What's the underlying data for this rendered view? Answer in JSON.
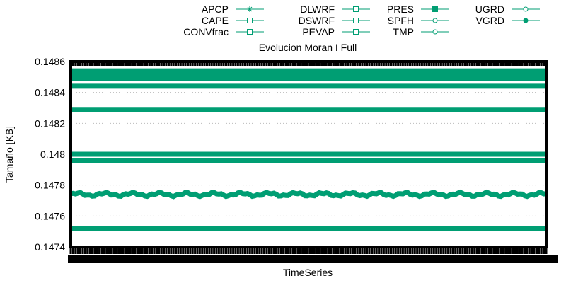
{
  "chart_data": {
    "type": "line",
    "title": "Evolucion Moran I Full",
    "xlabel": "TimeSeries",
    "ylabel": "Tamaño [KB]",
    "ylim": [
      0.1474,
      0.1486
    ],
    "yticks": [
      "0.1474",
      "0.1476",
      "0.1478",
      "0.148",
      "0.1482",
      "0.1484",
      "0.1486"
    ],
    "yticks_values": [
      0.1474,
      0.1476,
      0.1478,
      0.148,
      0.1482,
      0.1484,
      0.1486
    ],
    "x_points": 200,
    "grid": true,
    "legend": "top",
    "color": "#009E73",
    "series": [
      {
        "name": "APCP",
        "marker": "star",
        "value": 0.14844
      },
      {
        "name": "CAPE",
        "marker": "square",
        "value": 0.1485
      },
      {
        "name": "CONVfrac",
        "marker": "square",
        "value": 0.14853
      },
      {
        "name": "DLWRF",
        "marker": "square",
        "value": 0.14829
      },
      {
        "name": "DSWRF",
        "marker": "square",
        "value": 0.14852
      },
      {
        "name": "PEVAP",
        "marker": "square",
        "value": 0.14854
      },
      {
        "name": "PRES",
        "marker": "filled-square",
        "value": 0.14774,
        "wavy": true
      },
      {
        "name": "SPFH",
        "marker": "circle",
        "value": 0.148
      },
      {
        "name": "TMP",
        "marker": "circle",
        "value": 0.14796
      },
      {
        "name": "UGRD",
        "marker": "circle",
        "value": 0.14752
      },
      {
        "name": "VGRD",
        "marker": "filled-circle",
        "value": 0.14849
      }
    ]
  }
}
